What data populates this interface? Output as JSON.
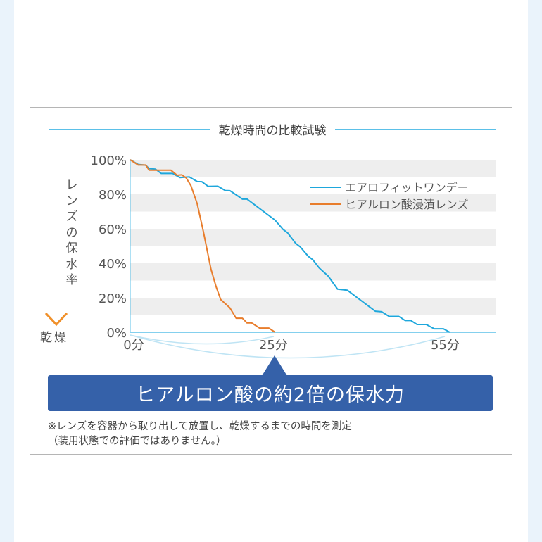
{
  "chart_data": {
    "type": "line",
    "title": "乾燥時間の比較試験",
    "ylabel": "レンズの保水率",
    "ylabel_bottom": "乾燥",
    "xlim": [
      0,
      63.8
    ],
    "ylim": [
      0,
      100
    ],
    "x_ticks": [
      {
        "value": 0,
        "label": "0分"
      },
      {
        "value": 25,
        "label": "25分"
      },
      {
        "value": 55,
        "label": "55分"
      }
    ],
    "y_ticks": [
      {
        "value": 100,
        "label": "100%"
      },
      {
        "value": 80,
        "label": "80%"
      },
      {
        "value": 60,
        "label": "60%"
      },
      {
        "value": 40,
        "label": "40%"
      },
      {
        "value": 20,
        "label": "20%"
      },
      {
        "value": 0,
        "label": "0%"
      }
    ],
    "grid": "alternating horizontal bands",
    "legend_position": "top-right",
    "series": [
      {
        "name": "エアロフィットワンデー",
        "color": "#1ea7dc",
        "x": [
          0,
          1.4,
          2.7,
          3.3,
          4.4,
          5.4,
          7.4,
          8.7,
          10.3,
          11.7,
          12.5,
          13.6,
          15.3,
          16.6,
          17.4,
          19.6,
          20.4,
          25.3,
          26.7,
          27.5,
          28.9,
          29.7,
          31.1,
          31.9,
          33,
          34.6,
          36.2,
          37.9,
          42.8,
          43.9,
          45.2,
          46.9,
          48,
          49,
          50.1,
          51.7,
          53.1,
          54.7,
          55.8
        ],
        "y": [
          100,
          97.3,
          96.9,
          94.9,
          94.6,
          92.1,
          92.1,
          89.7,
          90.1,
          87.4,
          87.3,
          84.6,
          84.7,
          82.2,
          82.1,
          77.2,
          77.2,
          65,
          59.6,
          57.6,
          51.5,
          49.5,
          44,
          42,
          37.3,
          32.5,
          25,
          24.4,
          12.2,
          11.9,
          9.2,
          9.2,
          6.8,
          6.8,
          4.5,
          4.5,
          2,
          2,
          0
        ]
      },
      {
        "name": "ヒアルロン酸浸漬レンズ",
        "color": "#e87d2c",
        "x": [
          0,
          1.4,
          2.7,
          3.3,
          7.1,
          8.2,
          9,
          9.8,
          10.6,
          11.7,
          12.8,
          14.1,
          15,
          15.8,
          17.4,
          18.5,
          19.6,
          20.4,
          21.2,
          22.6,
          24.2,
          25.3
        ],
        "y": [
          100,
          97,
          97,
          94,
          94,
          91,
          91.3,
          89.4,
          85,
          74.5,
          58,
          36.6,
          26.4,
          19,
          14.2,
          8.1,
          8.1,
          5.4,
          5.4,
          2.4,
          2.4,
          0
        ]
      }
    ]
  },
  "callout": "ヒアルロン酸の約2倍の保水力",
  "notes": [
    "※レンズを容器から取り出して放置し、乾燥するまでの時間を測定",
    "（装用状態での評価ではありません。）"
  ],
  "colors": {
    "callout": "#3561a9",
    "band": "#eeeeee",
    "axis": "#5bc0e8"
  }
}
